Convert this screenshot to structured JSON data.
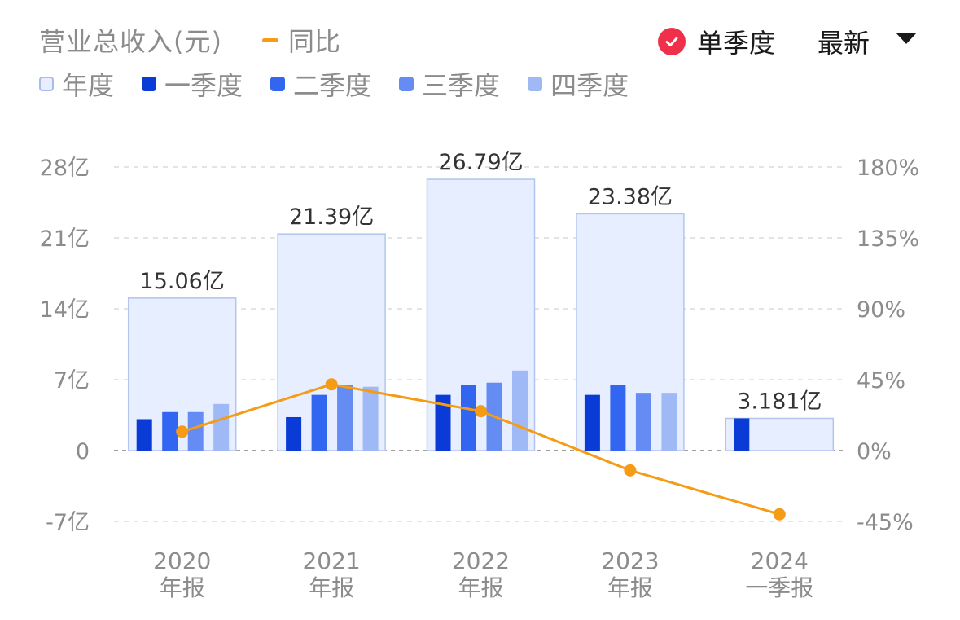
{
  "header": {
    "title": "营业总收入(元)",
    "yoy_label": "同比",
    "single_quarter_label": "单季度",
    "single_quarter_checked": true,
    "latest_label": "最新"
  },
  "legend": [
    {
      "label": "年度",
      "color": "#e6eeff",
      "border": "#a8bcef"
    },
    {
      "label": "一季度",
      "color": "#0a3bd6",
      "border": "#0a3bd6"
    },
    {
      "label": "二季度",
      "color": "#3366f0",
      "border": "#3366f0"
    },
    {
      "label": "三季度",
      "color": "#648cf2",
      "border": "#648cf2"
    },
    {
      "label": "四季度",
      "color": "#9fb8f6",
      "border": "#9fb8f6"
    }
  ],
  "colors": {
    "annual_fill": "#e6eeff",
    "annual_border": "#b3c5ef",
    "q1": "#0a3bd6",
    "q2": "#3366f0",
    "q3": "#648cf2",
    "q4": "#9fb8f6",
    "yoy_line": "#f59b14",
    "grid": "#dcdcdc",
    "zero_line": "#a0a0a0",
    "axis_text": "#8c8c8c",
    "value_text": "#333333"
  },
  "chart_data": {
    "type": "bar",
    "unit_left": "亿",
    "categories": [
      [
        "2020",
        "年报"
      ],
      [
        "2021",
        "年报"
      ],
      [
        "2022",
        "年报"
      ],
      [
        "2023",
        "年报"
      ],
      [
        "2024",
        "一季报"
      ]
    ],
    "annual": [
      15.06,
      21.39,
      26.79,
      23.38,
      3.181
    ],
    "annual_labels": [
      "15.06亿",
      "21.39亿",
      "26.79亿",
      "23.38亿",
      "3.181亿"
    ],
    "series": [
      {
        "name": "一季度",
        "values": [
          3.1,
          3.3,
          5.5,
          5.5,
          3.181
        ]
      },
      {
        "name": "二季度",
        "values": [
          3.8,
          5.5,
          6.5,
          6.5,
          null
        ]
      },
      {
        "name": "三季度",
        "values": [
          3.8,
          6.5,
          6.7,
          5.7,
          null
        ]
      },
      {
        "name": "四季度",
        "values": [
          4.6,
          6.3,
          7.9,
          5.7,
          null
        ]
      }
    ],
    "yoy": {
      "name": "同比",
      "values": [
        12,
        42,
        25,
        -12.6,
        -40.5
      ]
    },
    "ylim_left": [
      -7,
      28
    ],
    "yticks_left": [
      -7,
      0,
      7,
      14,
      21,
      28
    ],
    "yticklabels_left": [
      "-7亿",
      "0",
      "7亿",
      "14亿",
      "21亿",
      "28亿"
    ],
    "ylim_right": [
      -45,
      180
    ],
    "yticks_right": [
      -45,
      0,
      45,
      90,
      135,
      180
    ],
    "yticklabels_right": [
      "-45%",
      "0%",
      "45%",
      "90%",
      "135%",
      "180%"
    ],
    "grid": true,
    "legend_position": "top-left"
  }
}
